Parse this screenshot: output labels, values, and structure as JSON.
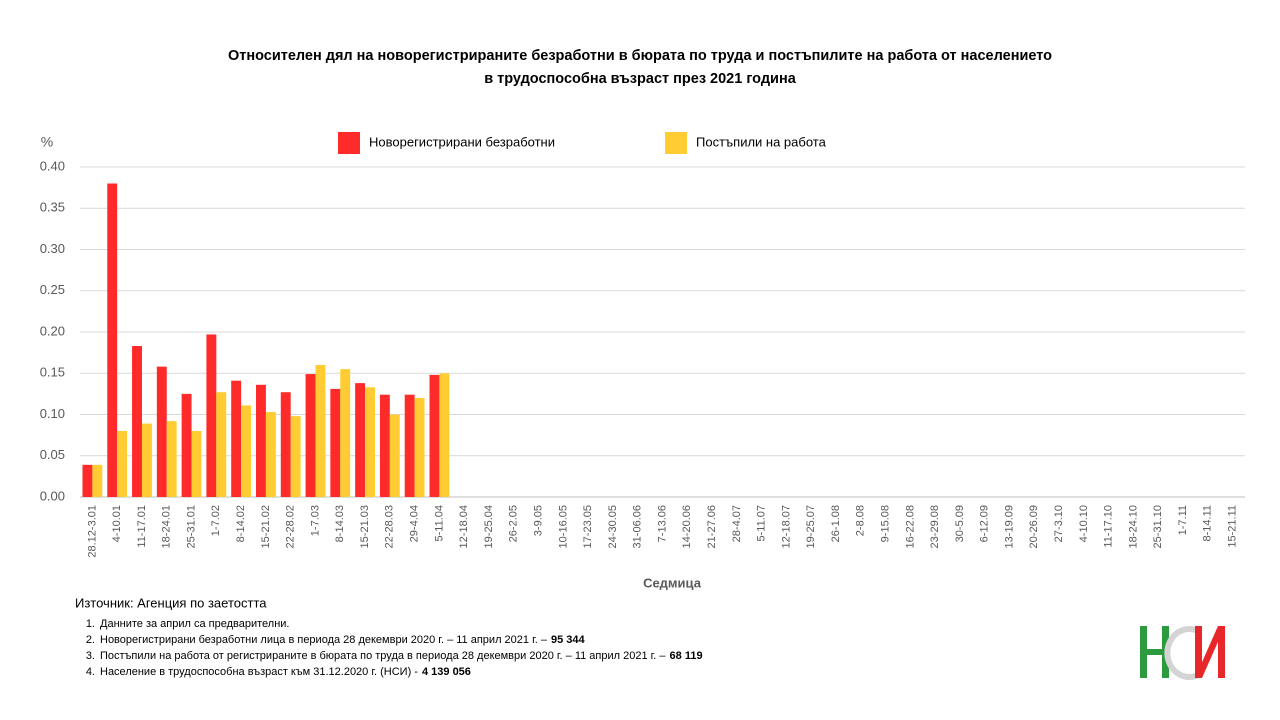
{
  "chart_data": {
    "type": "bar",
    "title": [
      "Относителен дял на новорегистрираните безработни в бюрата по труда и постъпилите на работа от населението",
      "в трудоспособна възраст през 2021 година"
    ],
    "y_label": "%",
    "x_label": "Седмица",
    "categories": [
      "28.12-3.01",
      "4-10.01",
      "11-17.01",
      "18-24.01",
      "25-31.01",
      "1-7.02",
      "8-14.02",
      "15-21.02",
      "22-28.02",
      "1-7.03",
      "8-14.03",
      "15-21.03",
      "22-28.03",
      "29-4.04",
      "5-11.04",
      "12-18.04",
      "19-25.04",
      "26-2.05",
      "3-9.05",
      "10-16.05",
      "17-23.05",
      "24-30.05",
      "31-06.06",
      "7-13.06",
      "14-20.06",
      "21-27.06",
      "28-4.07",
      "5-11.07",
      "12-18.07",
      "19-25.07",
      "26-1.08",
      "2-8.08",
      "9-15.08",
      "16-22.08",
      "23-29.08",
      "30-5.09",
      "6-12.09",
      "13-19.09",
      "20-26.09",
      "27-3.10",
      "4-10.10",
      "11-17.10",
      "18-24.10",
      "25-31.10",
      "1-7.11",
      "8-14.11",
      "15-21.11"
    ],
    "series": [
      {
        "name": "Новорегистрирани безработни",
        "color": "#ff2a2a",
        "values": [
          0.039,
          0.38,
          0.183,
          0.158,
          0.125,
          0.197,
          0.141,
          0.136,
          0.127,
          0.149,
          0.131,
          0.138,
          0.124,
          0.124,
          0.148,
          null,
          null,
          null,
          null,
          null,
          null,
          null,
          null,
          null,
          null,
          null,
          null,
          null,
          null,
          null,
          null,
          null,
          null,
          null,
          null,
          null,
          null,
          null,
          null,
          null,
          null,
          null,
          null,
          null,
          null,
          null,
          null
        ]
      },
      {
        "name": "Постъпили на работа",
        "color": "#ffcc33",
        "values": [
          0.039,
          0.08,
          0.089,
          0.092,
          0.08,
          0.127,
          0.111,
          0.103,
          0.098,
          0.16,
          0.155,
          0.133,
          0.1,
          0.12,
          0.15,
          null,
          null,
          null,
          null,
          null,
          null,
          null,
          null,
          null,
          null,
          null,
          null,
          null,
          null,
          null,
          null,
          null,
          null,
          null,
          null,
          null,
          null,
          null,
          null,
          null,
          null,
          null,
          null,
          null,
          null,
          null,
          null
        ]
      }
    ],
    "ylim": [
      0,
      0.4
    ],
    "yticks": [
      {
        "value": 0,
        "label": "0.00"
      },
      {
        "value": 0.05,
        "label": "0.05"
      },
      {
        "value": 0.1,
        "label": "0.10"
      },
      {
        "value": 0.15,
        "label": "0.15"
      },
      {
        "value": 0.2,
        "label": "0.20"
      },
      {
        "value": 0.25,
        "label": "0.25"
      },
      {
        "value": 0.3,
        "label": "0.30"
      },
      {
        "value": 0.35,
        "label": "0.35"
      },
      {
        "value": 0.4,
        "label": "0.40"
      }
    ],
    "grid": true,
    "legend": "top",
    "source": "Източник: Агенция по заетостта",
    "notes": [
      {
        "number": "1.",
        "text": "Данните за април са предварителни."
      },
      {
        "number": "2.",
        "text": "Новорегистрирани безработни лица в периода  28 декември  2020 г. – 11 април 2021 г. –",
        "value": "95 344"
      },
      {
        "number": "3.",
        "text": "Постъпили на работа от регистрираните в бюрата по труда в периода  28 декември  2020 г. – 11 април 2021 г. –",
        "value": "68 119"
      },
      {
        "number": "4.",
        "text": "Население в трудоспособна възраст към 31.12.2020 г. (НСИ)  -",
        "value": "4 139 056"
      }
    ]
  }
}
